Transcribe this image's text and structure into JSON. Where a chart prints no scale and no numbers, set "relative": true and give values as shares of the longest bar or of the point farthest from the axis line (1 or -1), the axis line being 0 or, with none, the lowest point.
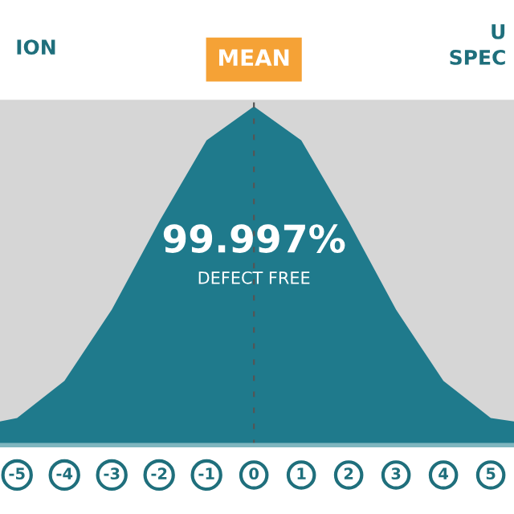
{
  "chart_data": {
    "type": "area",
    "relative": true,
    "x": [
      -5.36,
      -5,
      -4,
      -3,
      -2,
      -1,
      0,
      1,
      2,
      3,
      4,
      5,
      5.49
    ],
    "values": [
      0.07,
      0.08,
      0.19,
      0.4,
      0.66,
      0.9,
      1,
      0.9,
      0.66,
      0.4,
      0.19,
      0.08,
      0.07
    ],
    "color": "#1f7a8c",
    "xlim": [
      -5.36,
      5.49
    ],
    "xticks": [
      -5,
      -4,
      -3,
      -2,
      -1,
      0,
      1,
      2,
      3,
      4,
      5
    ],
    "ref_lines": [
      {
        "axis": "x",
        "value": 0,
        "label": "MEAN",
        "color": "#555555"
      }
    ],
    "annotations": [
      {
        "text": "99.997%",
        "x": 0,
        "y": 0.6
      },
      {
        "text": "DEFECT FREE",
        "x": 0,
        "y": 0.49
      },
      "ION",
      "U",
      "SPEC"
    ],
    "grid": false
  }
}
